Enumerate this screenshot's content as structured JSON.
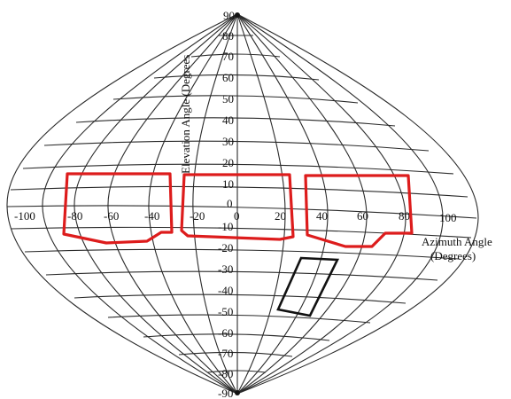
{
  "diagram": {
    "elevation_label": "Elevation Angle (Degrees",
    "azimuth_label_line1": "Azimuth Angle",
    "azimuth_label_line2": "(Degrees)",
    "elevation_ticks": [
      "90",
      "80",
      "70",
      "60",
      "50",
      "40",
      "30",
      "20",
      "10",
      "0",
      "-10",
      "-20",
      "-30",
      "-40",
      "-50",
      "-60",
      "-70",
      "-80",
      "-90"
    ],
    "azimuth_ticks": [
      "-100",
      "-80",
      "-60",
      "-40",
      "-20",
      "0",
      "20",
      "40",
      "60",
      "80",
      "100"
    ],
    "colors": {
      "highlight": "#dd1c1c",
      "outline": "#111111",
      "grid": "#2a2a2a"
    },
    "regions": [
      {
        "name": "left-red-region",
        "color": "red"
      },
      {
        "name": "center-red-region",
        "color": "red"
      },
      {
        "name": "right-red-region",
        "color": "red"
      },
      {
        "name": "black-rotated-region",
        "color": "black"
      }
    ]
  }
}
